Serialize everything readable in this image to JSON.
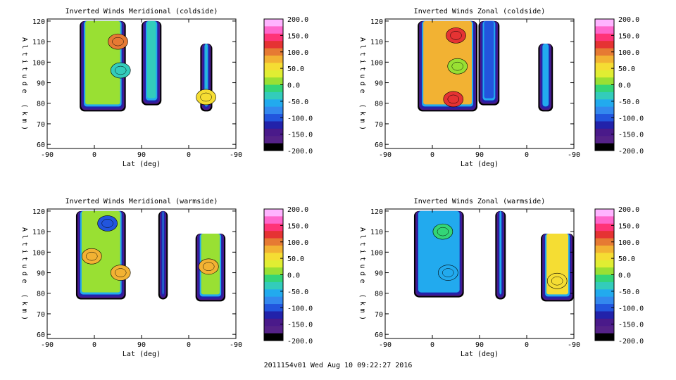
{
  "footer_text": "2011154v01 Wed Aug 10 09:22:27 2016",
  "colorbar": {
    "tick_labels": [
      "200.0",
      "150.0",
      "100.0",
      "50.0",
      "0.0",
      "-50.0",
      "-100.0",
      "-150.0",
      "-200.0"
    ],
    "range": [
      -200,
      200
    ],
    "colors": [
      "#ffb3ff",
      "#ff66cc",
      "#ff3377",
      "#e53333",
      "#e67a33",
      "#f2b233",
      "#f5dd33",
      "#e0ee33",
      "#99e033",
      "#33d577",
      "#33ccbb",
      "#22aaee",
      "#3388ee",
      "#2255dd",
      "#2222aa",
      "#4a1a8a",
      "#552288",
      "#000000"
    ]
  },
  "chart_data": [
    {
      "type": "contour",
      "title": "Inverted Winds Meridional (coldside)",
      "xlabel": "Lat (deg)",
      "ylabel": "Altitude (km)",
      "x_tick_labels": [
        "-90",
        "0",
        "90",
        "0",
        "-90"
      ],
      "y_ticks": [
        60,
        70,
        80,
        90,
        100,
        110,
        120
      ],
      "ylim": [
        58,
        121
      ],
      "regions": [
        {
          "x0": -28,
          "x1": 60,
          "bottom": 76,
          "top": 120,
          "fill": "#99e033"
        },
        {
          "x0": 90,
          "x1": 128,
          "bottom": 79,
          "top": 120,
          "fill": "#33ccbb"
        },
        {
          "x0": 202,
          "x1": 225,
          "bottom": 76,
          "top": 109,
          "fill": "#33ccbb"
        }
      ],
      "blobs": [
        {
          "lat": 45,
          "alt": 110,
          "fill": "#e67a33"
        },
        {
          "lat": 50,
          "alt": 96,
          "fill": "#33ccbb"
        },
        {
          "lat": 213,
          "alt": 83,
          "fill": "#f5dd33"
        }
      ]
    },
    {
      "type": "contour",
      "title": "Inverted Winds Zonal (coldside)",
      "xlabel": "Lat (deg)",
      "ylabel": "Altitude (km)",
      "x_tick_labels": [
        "-90",
        "0",
        "90",
        "0",
        "-90"
      ],
      "y_ticks": [
        60,
        70,
        80,
        90,
        100,
        110,
        120
      ],
      "ylim": [
        58,
        121
      ],
      "regions": [
        {
          "x0": -28,
          "x1": 86,
          "bottom": 76,
          "top": 120,
          "fill": "#f2b233"
        },
        {
          "x0": 88,
          "x1": 128,
          "bottom": 79,
          "top": 120,
          "fill": "#2255dd"
        },
        {
          "x0": 202,
          "x1": 230,
          "bottom": 76,
          "top": 109,
          "fill": "#22aaee"
        }
      ],
      "blobs": [
        {
          "lat": 45,
          "alt": 113,
          "fill": "#e53333"
        },
        {
          "lat": 48,
          "alt": 98,
          "fill": "#99e033"
        },
        {
          "lat": 40,
          "alt": 82,
          "fill": "#e53333"
        }
      ]
    },
    {
      "type": "contour",
      "title": "Inverted Winds Meridional (warmside)",
      "xlabel": "Lat (deg)",
      "ylabel": "Altitude (km)",
      "x_tick_labels": [
        "-90",
        "0",
        "90",
        "0",
        "-90"
      ],
      "y_ticks": [
        60,
        70,
        80,
        90,
        100,
        110,
        120
      ],
      "ylim": [
        58,
        121
      ],
      "regions": [
        {
          "x0": -35,
          "x1": 60,
          "bottom": 77,
          "top": 120,
          "fill": "#99e033"
        },
        {
          "x0": 122,
          "x1": 140,
          "bottom": 77,
          "top": 120,
          "fill": "#e0ee33"
        },
        {
          "x0": 193,
          "x1": 250,
          "bottom": 76,
          "top": 109,
          "fill": "#99e033"
        }
      ],
      "blobs": [
        {
          "lat": 25,
          "alt": 114,
          "fill": "#2255dd"
        },
        {
          "lat": -5,
          "alt": 98,
          "fill": "#f2b233"
        },
        {
          "lat": 50,
          "alt": 90,
          "fill": "#f2b233"
        },
        {
          "lat": 218,
          "alt": 93,
          "fill": "#f2b233"
        }
      ]
    },
    {
      "type": "contour",
      "title": "Inverted Winds Zonal (warmside)",
      "xlabel": "Lat (deg)",
      "ylabel": "Altitude (km)",
      "x_tick_labels": [
        "-90",
        "0",
        "90",
        "0",
        "-90"
      ],
      "y_ticks": [
        60,
        70,
        80,
        90,
        100,
        110,
        120
      ],
      "ylim": [
        58,
        121
      ],
      "regions": [
        {
          "x0": -35,
          "x1": 60,
          "bottom": 78,
          "top": 120,
          "fill": "#22aaee"
        },
        {
          "x0": 120,
          "x1": 140,
          "bottom": 77,
          "top": 120,
          "fill": "#22aaee"
        },
        {
          "x0": 207,
          "x1": 270,
          "bottom": 76,
          "top": 109,
          "fill": "#f5dd33"
        }
      ],
      "blobs": [
        {
          "lat": 20,
          "alt": 110,
          "fill": "#33d577"
        },
        {
          "lat": 30,
          "alt": 90,
          "fill": "#22aaee"
        },
        {
          "lat": 238,
          "alt": 86,
          "fill": "#f5dd33"
        }
      ]
    }
  ]
}
